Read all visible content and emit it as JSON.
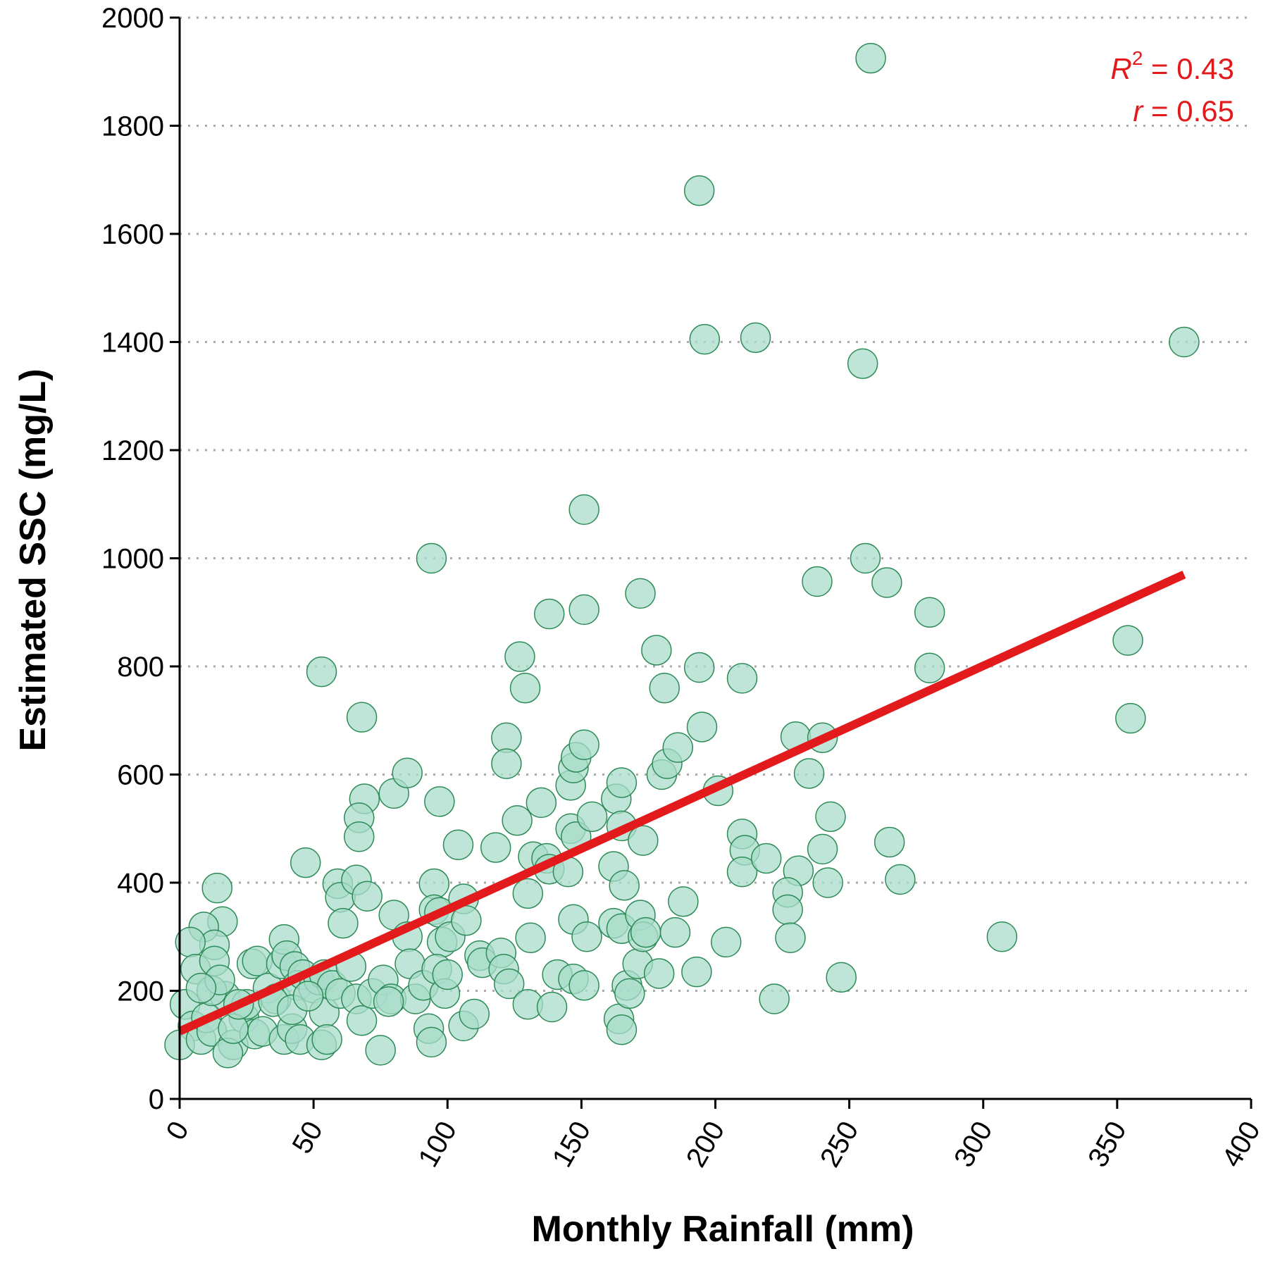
{
  "chart_data": {
    "type": "scatter",
    "xlabel": "Monthly Rainfall (mm)",
    "ylabel": "Estimated SSC (mg/L)",
    "xlim": [
      0,
      400
    ],
    "ylim": [
      0,
      2000
    ],
    "x_ticks": [
      "0",
      "50",
      "100",
      "150",
      "200",
      "250",
      "300",
      "350",
      "400"
    ],
    "y_ticks": [
      "0",
      "200",
      "400",
      "600",
      "800",
      "1000",
      "1200",
      "1400",
      "1600",
      "1800",
      "2000"
    ],
    "grid": "horizontal-dotted",
    "colors": {
      "point_fill": "#a8dcc9",
      "point_stroke": "#2e8b57",
      "fit_line": "#e31a1c"
    },
    "fit_line": {
      "x": [
        0,
        375
      ],
      "y": [
        125,
        970
      ]
    },
    "annotations": {
      "r2_symbol": "R",
      "r2_sup": "2",
      "r2_value": " = 0.43",
      "r_symbol": "r",
      "r_value": " = 0.65"
    },
    "points": [
      [
        258,
        1925
      ],
      [
        194,
        1680
      ],
      [
        196,
        1405
      ],
      [
        215,
        1408
      ],
      [
        255,
        1360
      ],
      [
        375,
        1400
      ],
      [
        151,
        1090
      ],
      [
        94,
        1000
      ],
      [
        256,
        1000
      ],
      [
        172,
        935
      ],
      [
        151,
        905
      ],
      [
        138,
        897
      ],
      [
        238,
        957
      ],
      [
        264,
        955
      ],
      [
        280,
        900
      ],
      [
        53,
        790
      ],
      [
        127,
        818
      ],
      [
        129,
        760
      ],
      [
        178,
        830
      ],
      [
        181,
        760
      ],
      [
        194,
        798
      ],
      [
        210,
        778
      ],
      [
        280,
        797
      ],
      [
        354,
        848
      ],
      [
        355,
        704
      ],
      [
        68,
        706
      ],
      [
        69,
        555
      ],
      [
        67,
        520
      ],
      [
        67,
        485
      ],
      [
        80,
        565
      ],
      [
        85,
        603
      ],
      [
        97,
        550
      ],
      [
        104,
        470
      ],
      [
        118,
        465
      ],
      [
        122,
        668
      ],
      [
        122,
        620
      ],
      [
        126,
        515
      ],
      [
        132,
        448
      ],
      [
        135,
        548
      ],
      [
        146,
        580
      ],
      [
        147,
        612
      ],
      [
        148,
        632
      ],
      [
        151,
        655
      ],
      [
        146,
        500
      ],
      [
        148,
        485
      ],
      [
        154,
        522
      ],
      [
        162,
        430
      ],
      [
        163,
        555
      ],
      [
        165,
        585
      ],
      [
        165,
        505
      ],
      [
        173,
        478
      ],
      [
        180,
        600
      ],
      [
        182,
        620
      ],
      [
        186,
        650
      ],
      [
        195,
        688
      ],
      [
        201,
        570
      ],
      [
        210,
        490
      ],
      [
        211,
        460
      ],
      [
        210,
        420
      ],
      [
        219,
        445
      ],
      [
        230,
        670
      ],
      [
        235,
        602
      ],
      [
        240,
        668
      ],
      [
        231,
        422
      ],
      [
        240,
        462
      ],
      [
        243,
        522
      ],
      [
        242,
        400
      ],
      [
        265,
        475
      ],
      [
        269,
        406
      ],
      [
        47,
        437
      ],
      [
        59,
        398
      ],
      [
        60,
        373
      ],
      [
        61,
        325
      ],
      [
        66,
        405
      ],
      [
        70,
        375
      ],
      [
        95,
        398
      ],
      [
        95,
        350
      ],
      [
        97,
        345
      ],
      [
        98,
        290
      ],
      [
        101,
        300
      ],
      [
        106,
        370
      ],
      [
        107,
        330
      ],
      [
        106,
        135
      ],
      [
        110,
        157
      ],
      [
        112,
        265
      ],
      [
        113,
        252
      ],
      [
        120,
        270
      ],
      [
        121,
        240
      ],
      [
        123,
        213
      ],
      [
        130,
        380
      ],
      [
        130,
        175
      ],
      [
        131,
        298
      ],
      [
        137,
        445
      ],
      [
        138,
        425
      ],
      [
        141,
        230
      ],
      [
        139,
        170
      ],
      [
        145,
        420
      ],
      [
        147,
        332
      ],
      [
        147,
        222
      ],
      [
        151,
        210
      ],
      [
        152,
        300
      ],
      [
        162,
        325
      ],
      [
        165,
        315
      ],
      [
        164,
        148
      ],
      [
        165,
        128
      ],
      [
        166,
        395
      ],
      [
        167,
        210
      ],
      [
        168,
        195
      ],
      [
        171,
        250
      ],
      [
        172,
        340
      ],
      [
        173,
        300
      ],
      [
        174,
        308
      ],
      [
        179,
        232
      ],
      [
        185,
        308
      ],
      [
        188,
        365
      ],
      [
        193,
        235
      ],
      [
        204,
        290
      ],
      [
        222,
        185
      ],
      [
        227,
        382
      ],
      [
        227,
        350
      ],
      [
        228,
        298
      ],
      [
        247,
        225
      ],
      [
        307,
        300
      ],
      [
        14,
        390
      ],
      [
        16,
        328
      ],
      [
        9,
        318
      ],
      [
        13,
        285
      ],
      [
        4,
        290
      ],
      [
        6,
        240
      ],
      [
        13,
        255
      ],
      [
        17,
        190
      ],
      [
        2,
        175
      ],
      [
        5,
        135
      ],
      [
        0,
        100
      ],
      [
        8,
        110
      ],
      [
        10,
        150
      ],
      [
        12,
        125
      ],
      [
        12,
        200
      ],
      [
        15,
        220
      ],
      [
        20,
        100
      ],
      [
        18,
        85
      ],
      [
        24,
        150
      ],
      [
        25,
        175
      ],
      [
        27,
        250
      ],
      [
        28,
        120
      ],
      [
        29,
        255
      ],
      [
        31,
        125
      ],
      [
        33,
        205
      ],
      [
        36,
        185
      ],
      [
        38,
        250
      ],
      [
        39,
        295
      ],
      [
        40,
        265
      ],
      [
        39,
        110
      ],
      [
        42,
        130
      ],
      [
        43,
        245
      ],
      [
        44,
        210
      ],
      [
        45,
        110
      ],
      [
        46,
        230
      ],
      [
        50,
        205
      ],
      [
        52,
        220
      ],
      [
        54,
        230
      ],
      [
        54,
        160
      ],
      [
        53,
        100
      ],
      [
        55,
        110
      ],
      [
        57,
        210
      ],
      [
        60,
        195
      ],
      [
        64,
        245
      ],
      [
        66,
        185
      ],
      [
        68,
        145
      ],
      [
        72,
        195
      ],
      [
        75,
        90
      ],
      [
        76,
        220
      ],
      [
        79,
        185
      ],
      [
        80,
        340
      ],
      [
        85,
        300
      ],
      [
        86,
        250
      ],
      [
        88,
        185
      ],
      [
        91,
        210
      ],
      [
        93,
        130
      ],
      [
        94,
        105
      ],
      [
        96,
        240
      ],
      [
        99,
        195
      ],
      [
        100,
        230
      ],
      [
        78,
        180
      ],
      [
        35,
        180
      ],
      [
        42,
        165
      ],
      [
        48,
        190
      ],
      [
        20,
        130
      ],
      [
        8,
        205
      ],
      [
        22,
        175
      ]
    ]
  }
}
